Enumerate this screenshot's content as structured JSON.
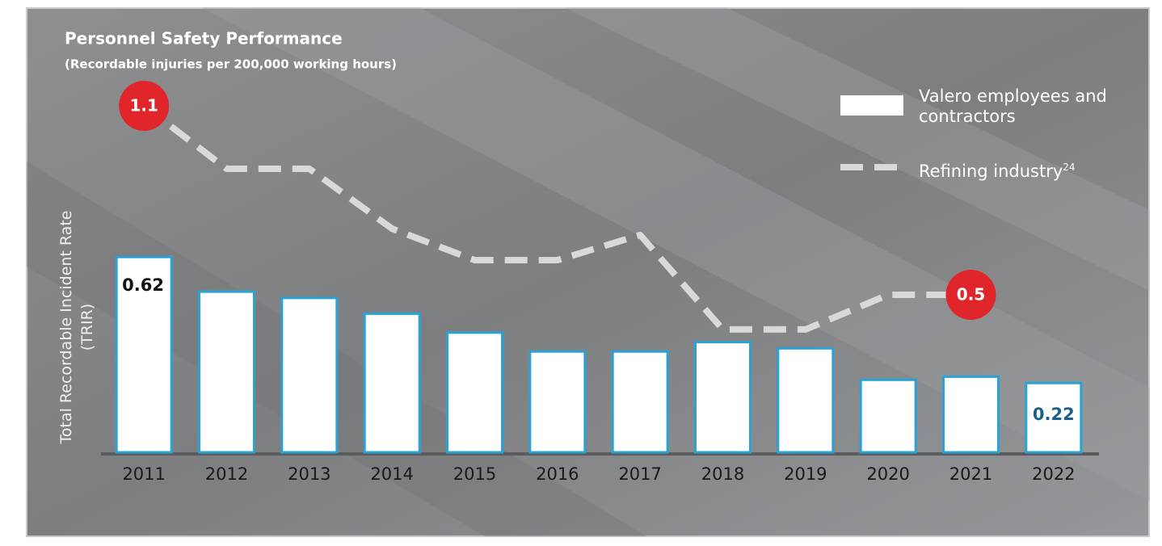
{
  "chart_data": {
    "type": "bar",
    "title": "Personnel Safety Performance",
    "subtitle": "(Recordable injuries per 200,000 working hours)",
    "y_label": "Total Recordable Incident Rate (TRIR)",
    "categories": [
      "2011",
      "2012",
      "2013",
      "2014",
      "2015",
      "2016",
      "2017",
      "2018",
      "2019",
      "2020",
      "2021",
      "2022"
    ],
    "series": [
      {
        "name": "Valero employees and contractors",
        "type": "bar",
        "color": "#ffffff",
        "edge_color": "#29a3d6",
        "values": [
          0.62,
          0.51,
          0.49,
          0.44,
          0.38,
          0.32,
          0.32,
          0.35,
          0.33,
          0.23,
          0.24,
          0.22
        ],
        "labeled": [
          0,
          11
        ]
      },
      {
        "name": "Refining industry",
        "name_footnote": "24",
        "type": "line",
        "color": "#d9d9d9",
        "dashed": true,
        "values": [
          1.1,
          0.9,
          0.9,
          0.71,
          0.61,
          0.61,
          0.69,
          0.39,
          0.39,
          0.5,
          0.5,
          null
        ],
        "labeled": [
          0,
          10
        ]
      }
    ]
  }
}
